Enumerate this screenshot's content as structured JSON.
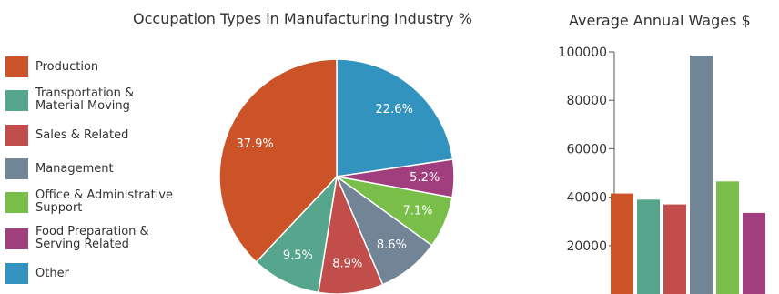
{
  "chart_data": [
    {
      "type": "pie",
      "title": "Occupation Types in Manufacturing Industry %",
      "slices": [
        {
          "label": "Other",
          "value": 22.6,
          "value_label": "22.6%",
          "color": "#3393bf"
        },
        {
          "label": "Food Preparation & Serving Related",
          "value": 5.2,
          "value_label": "5.2%",
          "color": "#a03e7e"
        },
        {
          "label": "Office & Administrative Support",
          "value": 7.1,
          "value_label": "7.1%",
          "color": "#78be49"
        },
        {
          "label": "Management",
          "value": 8.6,
          "value_label": "8.6%",
          "color": "#728597"
        },
        {
          "label": "Sales & Related",
          "value": 8.9,
          "value_label": "8.9%",
          "color": "#c14e4b"
        },
        {
          "label": "Transportation & Material Moving",
          "value": 9.5,
          "value_label": "9.5%",
          "color": "#55a68c"
        },
        {
          "label": "Production",
          "value": 37.9,
          "value_label": "37.9%",
          "color": "#cc5228"
        }
      ]
    },
    {
      "type": "bar",
      "title": "Average Annual Wages $",
      "categories": [
        "Production",
        "Transportation & Material Moving",
        "Sales & Related",
        "Management",
        "Office & Administrative Support",
        "Food Preparation & Serving Related"
      ],
      "values": [
        41500,
        39000,
        37000,
        98500,
        46500,
        33500
      ],
      "colors": [
        "#cc5228",
        "#55a68c",
        "#c14e4b",
        "#728597",
        "#78be49",
        "#a03e7e"
      ],
      "ylim": [
        0,
        100000
      ],
      "yticks": [
        20000,
        40000,
        60000,
        80000,
        100000
      ],
      "ytick_labels": [
        "20000",
        "40000",
        "60000",
        "80000",
        "100000"
      ]
    }
  ],
  "legend": {
    "items": [
      {
        "lines": [
          "Production"
        ],
        "color": "#cc5228"
      },
      {
        "lines": [
          "Transportation &",
          "Material Moving"
        ],
        "color": "#55a68c"
      },
      {
        "lines": [
          "Sales & Related"
        ],
        "color": "#c14e4b"
      },
      {
        "lines": [
          "Management"
        ],
        "color": "#728597"
      },
      {
        "lines": [
          "Office & Administrative",
          "Support"
        ],
        "color": "#78be49"
      },
      {
        "lines": [
          "Food Preparation &",
          "Serving Related"
        ],
        "color": "#a03e7e"
      },
      {
        "lines": [
          "Other"
        ],
        "color": "#3393bf"
      }
    ]
  }
}
